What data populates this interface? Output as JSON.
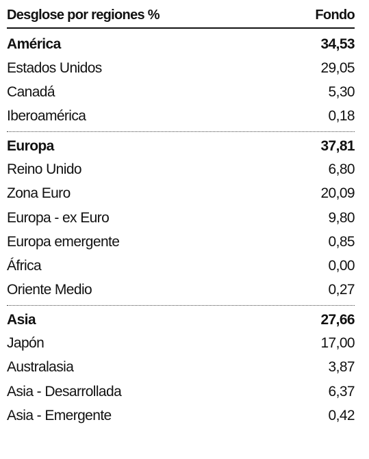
{
  "header": {
    "title": "Desglose por regiones %",
    "column": "Fondo"
  },
  "groups": [
    {
      "name": "América",
      "total": "34,53",
      "rows": [
        {
          "label": "Estados Unidos",
          "value": "29,05"
        },
        {
          "label": "Canadá",
          "value": "5,30"
        },
        {
          "label": "Iberoamérica",
          "value": "0,18"
        }
      ]
    },
    {
      "name": "Europa",
      "total": "37,81",
      "rows": [
        {
          "label": "Reino Unido",
          "value": "6,80"
        },
        {
          "label": "Zona Euro",
          "value": "20,09"
        },
        {
          "label": "Europa - ex Euro",
          "value": "9,80"
        },
        {
          "label": "Europa emergente",
          "value": "0,85"
        },
        {
          "label": "África",
          "value": "0,00"
        },
        {
          "label": "Oriente Medio",
          "value": "0,27"
        }
      ]
    },
    {
      "name": "Asia",
      "total": "27,66",
      "rows": [
        {
          "label": "Japón",
          "value": "17,00"
        },
        {
          "label": "Australasia",
          "value": "3,87"
        },
        {
          "label": "Asia - Desarrollada",
          "value": "6,37"
        },
        {
          "label": "Asia - Emergente",
          "value": "0,42"
        }
      ]
    }
  ]
}
